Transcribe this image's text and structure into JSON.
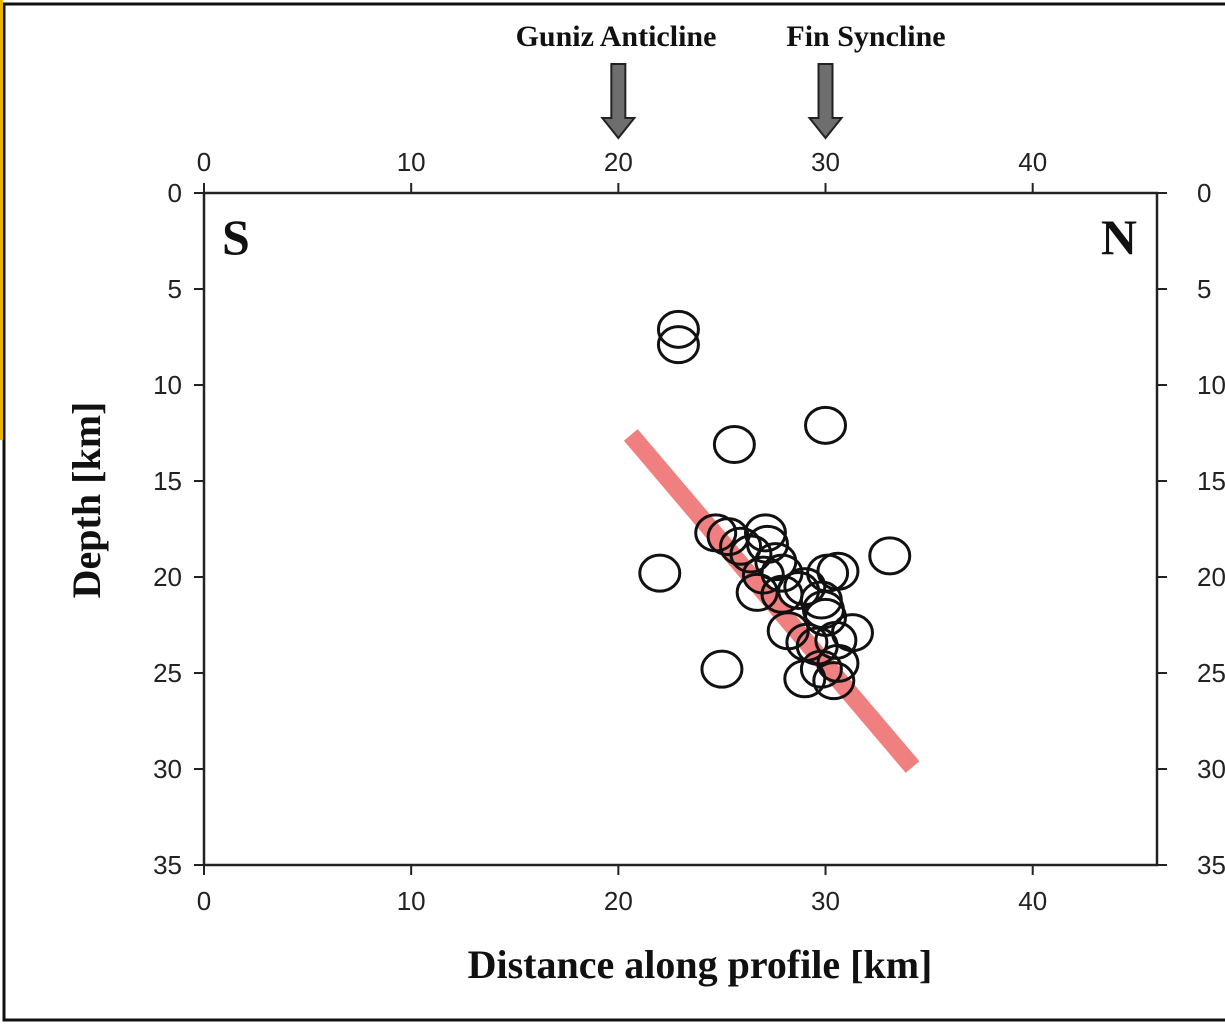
{
  "chart_data": {
    "type": "scatter",
    "title": "",
    "xlabel": "Distance along profile [km]",
    "ylabel": "Depth [km]",
    "xlim": [
      0,
      46
    ],
    "ylim": [
      0,
      35
    ],
    "y_inverted": true,
    "x_ticks": [
      "0",
      "10",
      "20",
      "30",
      "40"
    ],
    "y_ticks": [
      "0",
      "5",
      "10",
      "15",
      "20",
      "25",
      "30",
      "35"
    ],
    "ticks_on_all_sides": true,
    "grid": false,
    "marker": "open circle",
    "corner_labels": {
      "left": "S",
      "right": "N"
    },
    "annotations": [
      {
        "text": "Guniz Anticline",
        "x": 20,
        "marker": "down-arrow"
      },
      {
        "text": "Fin Syncline",
        "x": 30,
        "marker": "down-arrow"
      }
    ],
    "trend_line": {
      "color": "#f08080",
      "points": [
        [
          20.6,
          12.6
        ],
        [
          34.2,
          29.9
        ]
      ]
    },
    "series": [
      {
        "points": [
          [
            22.9,
            7.9
          ],
          [
            22.9,
            7.1
          ],
          [
            25.6,
            13.1
          ],
          [
            30.0,
            12.1
          ],
          [
            33.1,
            18.9
          ],
          [
            22.0,
            19.8
          ],
          [
            24.7,
            17.7
          ],
          [
            25.3,
            17.9
          ],
          [
            25.9,
            18.4
          ],
          [
            26.4,
            18.8
          ],
          [
            27.1,
            17.7
          ],
          [
            27.2,
            18.3
          ],
          [
            27.6,
            19.2
          ],
          [
            27.9,
            19.8
          ],
          [
            27.0,
            19.9
          ],
          [
            26.7,
            20.8
          ],
          [
            27.9,
            20.9
          ],
          [
            28.7,
            20.7
          ],
          [
            29.0,
            20.5
          ],
          [
            30.6,
            19.7
          ],
          [
            30.1,
            19.8
          ],
          [
            29.8,
            21.2
          ],
          [
            29.9,
            21.7
          ],
          [
            30.0,
            22.1
          ],
          [
            28.2,
            22.8
          ],
          [
            29.1,
            23.4
          ],
          [
            29.6,
            23.6
          ],
          [
            30.5,
            23.3
          ],
          [
            31.3,
            22.9
          ],
          [
            30.6,
            24.5
          ],
          [
            29.8,
            24.8
          ],
          [
            29.0,
            25.3
          ],
          [
            30.4,
            25.4
          ],
          [
            25.0,
            24.8
          ]
        ]
      }
    ]
  }
}
